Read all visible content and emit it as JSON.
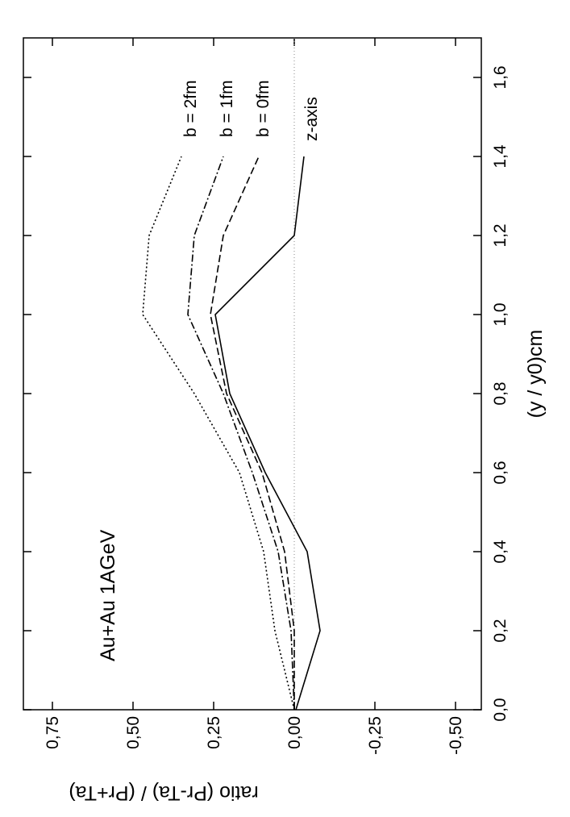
{
  "chart_data": {
    "type": "line",
    "x_label": "(y / y0)cm",
    "y_label": "ratio   (Pr-Ta) / (Pr+Ta)",
    "annotation": "Au+Au  1AGeV",
    "xlim": [
      0,
      1.7
    ],
    "ylim": [
      -0.58,
      0.84
    ],
    "xticks": [
      {
        "value": 0,
        "label": "0,0"
      },
      {
        "value": 0.2,
        "label": "0,2"
      },
      {
        "value": 0.4,
        "label": "0,4"
      },
      {
        "value": 0.6,
        "label": "0,6"
      },
      {
        "value": 0.8,
        "label": "0,8"
      },
      {
        "value": 1.0,
        "label": "1,0"
      },
      {
        "value": 1.2,
        "label": "1,2"
      },
      {
        "value": 1.4,
        "label": "1,4"
      },
      {
        "value": 1.6,
        "label": "1,6"
      }
    ],
    "yticks": [
      {
        "value": -0.5,
        "label": "-0,50"
      },
      {
        "value": -0.25,
        "label": "-0,25"
      },
      {
        "value": 0,
        "label": "0,00"
      },
      {
        "value": 0.25,
        "label": "0,25"
      },
      {
        "value": 0.5,
        "label": "0,50"
      },
      {
        "value": 0.75,
        "label": "0,75"
      }
    ],
    "reference_line": 0,
    "x": [
      0,
      0.2,
      0.4,
      0.6,
      0.8,
      1.0,
      1.2,
      1.4
    ],
    "series": [
      {
        "name": "b = 2fm",
        "color": "#000000",
        "dash": "2,3",
        "values": [
          0.0,
          0.06,
          0.095,
          0.17,
          0.31,
          0.47,
          0.45,
          0.35
        ]
      },
      {
        "name": "b = 1fm",
        "color": "#000000",
        "dash": "9,3,2,3",
        "values": [
          0.0,
          0.01,
          0.05,
          0.13,
          0.22,
          0.33,
          0.31,
          0.22
        ]
      },
      {
        "name": "b = 0fm",
        "color": "#000000",
        "dash": "9,4",
        "values": [
          0.0,
          0.0,
          0.03,
          0.1,
          0.21,
          0.26,
          0.22,
          0.11
        ]
      },
      {
        "name": "z-axis",
        "color": "#000000",
        "dash": "",
        "values": [
          -0.005,
          -0.08,
          -0.04,
          0.09,
          0.2,
          0.245,
          0.0,
          -0.03
        ]
      }
    ]
  }
}
